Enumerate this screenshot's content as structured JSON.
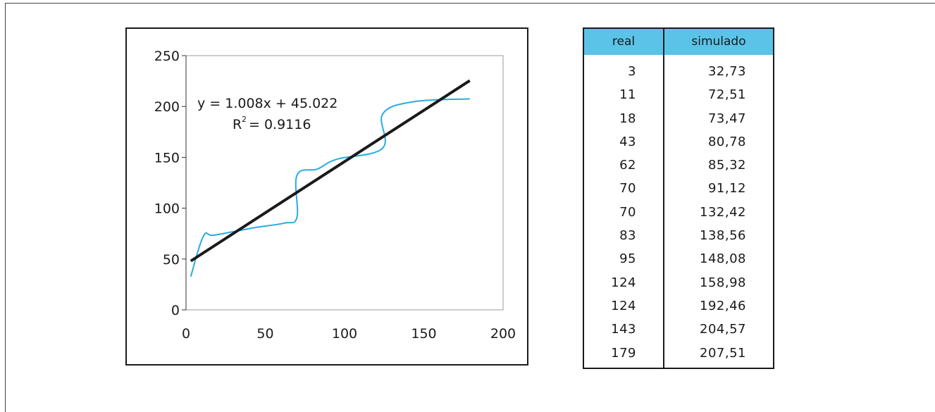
{
  "chart_data": {
    "type": "line",
    "xlim": [
      0,
      200
    ],
    "ylim": [
      0,
      250
    ],
    "x_ticks": [
      "0",
      "50",
      "100",
      "150",
      "200"
    ],
    "y_ticks": [
      "0",
      "50",
      "100",
      "150",
      "200",
      "250"
    ],
    "series": [
      {
        "values_x": [
          3,
          11,
          18,
          43,
          62,
          70,
          70,
          83,
          95,
          124,
          124,
          143,
          179
        ],
        "values_y": [
          32.73,
          72.51,
          73.47,
          80.78,
          85.32,
          91.12,
          132.42,
          138.56,
          148.08,
          158.98,
          192.46,
          204.57,
          207.51
        ],
        "color": "#29abe2"
      }
    ],
    "trendline": {
      "slope": 1.008,
      "intercept": 45.022,
      "x_range": [
        3,
        179
      ],
      "color": "#1a1a1a"
    },
    "equation": "y = 1.008x + 45.022",
    "r2_label": "R",
    "r2_sup": "2",
    "r2_value": "= 0.9116",
    "grid": false
  },
  "table": {
    "headers": [
      "real",
      "simulado"
    ],
    "rows": [
      [
        "3",
        "32,73"
      ],
      [
        "11",
        "72,51"
      ],
      [
        "18",
        "73,47"
      ],
      [
        "43",
        "80,78"
      ],
      [
        "62",
        "85,32"
      ],
      [
        "70",
        "91,12"
      ],
      [
        "70",
        "132,42"
      ],
      [
        "83",
        "138,56"
      ],
      [
        "95",
        "148,08"
      ],
      [
        "124",
        "158,98"
      ],
      [
        "124",
        "192,46"
      ],
      [
        "143",
        "204,57"
      ],
      [
        "179",
        "207,51"
      ]
    ],
    "header_color": "#5bc3e8"
  }
}
